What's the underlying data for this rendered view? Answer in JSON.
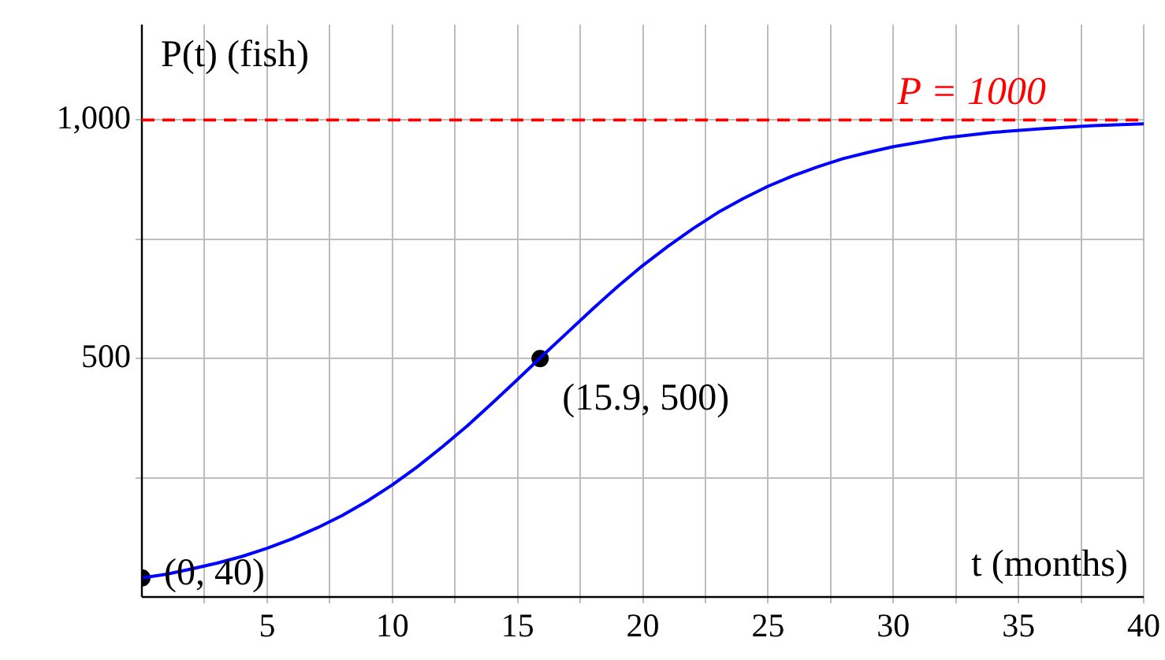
{
  "chart_data": {
    "type": "line",
    "xlabel": "t (months)",
    "ylabel": "P(t) (fish)",
    "xlim": [
      0,
      40
    ],
    "ylim": [
      0,
      1200
    ],
    "xticks": [
      {
        "value": 2.5,
        "label": null
      },
      5,
      {
        "value": 7.5,
        "label": null
      },
      10,
      {
        "value": 12.5,
        "label": null
      },
      15,
      {
        "value": 17.5,
        "label": null
      },
      20,
      {
        "value": 22.5,
        "label": null
      },
      25,
      {
        "value": 27.5,
        "label": null
      },
      30,
      {
        "value": 32.5,
        "label": null
      },
      35,
      {
        "value": 37.5,
        "label": null
      },
      40
    ],
    "yticks": [
      {
        "value": 250,
        "label": null
      },
      {
        "value": 500,
        "label": "500"
      },
      {
        "value": 750,
        "label": null
      },
      {
        "value": 1000,
        "label": "1,000"
      }
    ],
    "grid": true,
    "legend": false,
    "marker": "none",
    "line_style": "solid",
    "series": [
      {
        "color": "#0000ff",
        "x": [
          0,
          1,
          2,
          3,
          4,
          5,
          6,
          7,
          8,
          9,
          10,
          11,
          12,
          13,
          14,
          15,
          16,
          17,
          18,
          19,
          20,
          21,
          22,
          23,
          24,
          25,
          26,
          27,
          28,
          29,
          30,
          32,
          34,
          36,
          38,
          40
        ],
        "values": [
          40,
          48,
          59,
          71,
          85,
          102,
          122,
          145,
          171,
          201,
          235,
          273,
          315,
          359,
          407,
          456,
          506,
          555,
          604,
          651,
          695,
          735,
          772,
          806,
          835,
          861,
          883,
          902,
          919,
          932,
          944,
          962,
          974,
          982,
          988,
          992
        ]
      },
      {
        "type": "scatter",
        "color": "#000000",
        "marker": "circle",
        "x": [
          0,
          15.9
        ],
        "values": [
          40,
          500
        ]
      }
    ],
    "ref_lines": [
      {
        "axis": "y",
        "value": 1000,
        "label": "P = 1000",
        "color": "#ff0000",
        "line_style": "dashed"
      }
    ],
    "annotations": [
      {
        "text": "(0, 40)",
        "x": 0,
        "y": 40
      },
      {
        "text": "(15.9, 500)",
        "x": 15.9,
        "y": 500
      }
    ]
  }
}
